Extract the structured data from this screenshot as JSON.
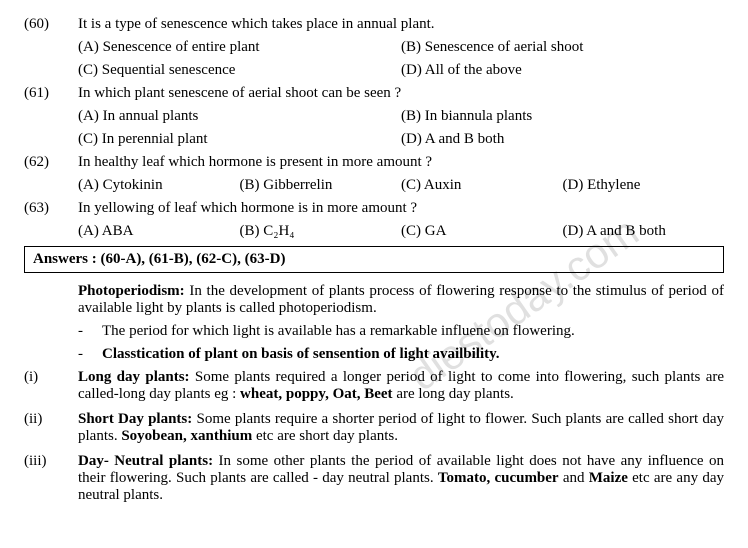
{
  "q60": {
    "num": "(60)",
    "text": "It is a type of senescence which takes place in annual plant.",
    "a": "(A) Senescence of entire plant",
    "b": "(B) Senescence of aerial shoot",
    "c": "(C) Sequential senescence",
    "d": "(D) All of the above"
  },
  "q61": {
    "num": "(61)",
    "text": "In which plant senescene of aerial shoot can be seen ?",
    "a": "(A) In annual plants",
    "b": "(B) In biannula plants",
    "c": "(C) In perennial plant",
    "d": "(D) A and B both"
  },
  "q62": {
    "num": "(62)",
    "text": "In healthy leaf which hormone is present in more amount ?",
    "a": "(A) Cytokinin",
    "b": "(B) Gibberrelin",
    "c": "(C) Auxin",
    "d": "(D) Ethylene"
  },
  "q63": {
    "num": "(63)",
    "text": "In yellowing of leaf which hormone is in more amount ?",
    "a": "(A) ABA",
    "b": "(B) C₂H₄",
    "c": "(C) GA",
    "d": "(D) A and B both"
  },
  "answers": "Answers : (60-A), (61-B), (62-C), (63-D)",
  "photo": {
    "heading": "Photoperiodism:",
    "text": " In the development of plants process of flowering response to the stimulus of period of available light by plants is called photoperiodism.",
    "bullet1": "The period for which light is available has a remarkable influene on flowering.",
    "bullet2": "Classtication of plant on basis of sensention of light availbility."
  },
  "i": {
    "num": "(i)",
    "heading": "Long day plants:",
    "t1": " Some plants required a longer period of light to come into flowering, such plants are called-long day plants eg : ",
    "b1": "wheat, poppy, Oat, Beet",
    "t2": " are long day plants."
  },
  "ii": {
    "num": "(ii)",
    "heading": "Short Day plants:",
    "t1": " Some plants require a shorter period of light to flower. Such plants are called short day plants. ",
    "b1": "Soyobean, xanthium",
    "t2": " etc are short day plants."
  },
  "iii": {
    "num": "(iii)",
    "heading": "Day- Neutral plants:",
    "t1": " In some other plants the period of available light does not have any influence on their flowering. Such plants are called - day neutral plants. ",
    "b1": "Tomato, cucumber",
    "t2": " and ",
    "b2": "Maize",
    "t3": " etc are any day neutral plants."
  },
  "watermark": "diestoday.com"
}
